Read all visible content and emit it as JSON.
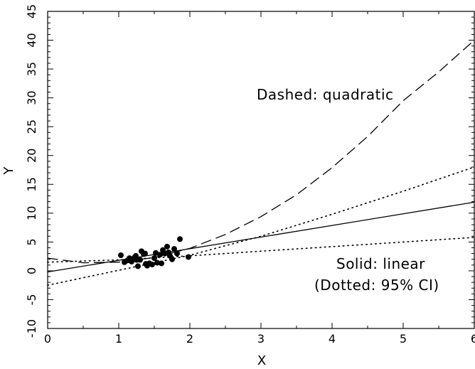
{
  "chart_data": {
    "type": "scatter",
    "xlabel": "X",
    "ylabel": "Y",
    "xlim": [
      0,
      6
    ],
    "ylim": [
      -10,
      45
    ],
    "xticks": [
      0,
      1,
      2,
      3,
      4,
      5,
      6
    ],
    "yticks": [
      -10,
      -5,
      0,
      5,
      10,
      15,
      20,
      25,
      30,
      35,
      40,
      45
    ],
    "annotations": [
      "Dashed: quadratic",
      "Solid: linear",
      "(Dotted: 95% CI)"
    ],
    "points": [
      [
        1.03,
        2.7
      ],
      [
        1.08,
        1.5
      ],
      [
        1.12,
        1.8
      ],
      [
        1.15,
        2.2
      ],
      [
        1.18,
        1.6
      ],
      [
        1.22,
        2.3
      ],
      [
        1.24,
        2.6
      ],
      [
        1.25,
        1.9
      ],
      [
        1.27,
        0.8
      ],
      [
        1.3,
        1.9
      ],
      [
        1.32,
        3.4
      ],
      [
        1.35,
        2.9
      ],
      [
        1.37,
        3.0
      ],
      [
        1.38,
        1.2
      ],
      [
        1.4,
        0.9
      ],
      [
        1.43,
        1.3
      ],
      [
        1.47,
        1.1
      ],
      [
        1.5,
        2.2
      ],
      [
        1.52,
        3.1
      ],
      [
        1.54,
        1.4
      ],
      [
        1.58,
        2.8
      ],
      [
        1.6,
        1.3
      ],
      [
        1.62,
        3.6
      ],
      [
        1.65,
        3.0
      ],
      [
        1.68,
        4.2
      ],
      [
        1.7,
        3.2
      ],
      [
        1.72,
        2.6
      ],
      [
        1.75,
        2.0
      ],
      [
        1.78,
        3.8
      ],
      [
        1.82,
        3.0
      ],
      [
        1.86,
        5.5
      ],
      [
        1.98,
        2.4
      ]
    ],
    "series": [
      {
        "style": "solid",
        "x": [
          0,
          6
        ],
        "y": [
          -0.2,
          11.9
        ]
      },
      {
        "style": "dotted",
        "x": [
          0,
          2,
          3,
          4,
          5,
          6
        ],
        "y": [
          -2.5,
          2.7,
          6.0,
          9.8,
          13.8,
          18.0
        ]
      },
      {
        "style": "dotted",
        "x": [
          0,
          1,
          2,
          3,
          4,
          5,
          6
        ],
        "y": [
          1.5,
          1.9,
          2.6,
          3.4,
          4.2,
          5.0,
          5.8
        ]
      },
      {
        "style": "dashed",
        "x": [
          0,
          0.5,
          1,
          1.5,
          2,
          2.5,
          3,
          3.5,
          4,
          4.5,
          5,
          5.5,
          6
        ],
        "y": [
          2.2,
          1.4,
          1.5,
          2.3,
          3.9,
          6.3,
          9.4,
          13.2,
          17.9,
          23.3,
          29.5,
          34.5,
          40.0
        ]
      }
    ]
  }
}
